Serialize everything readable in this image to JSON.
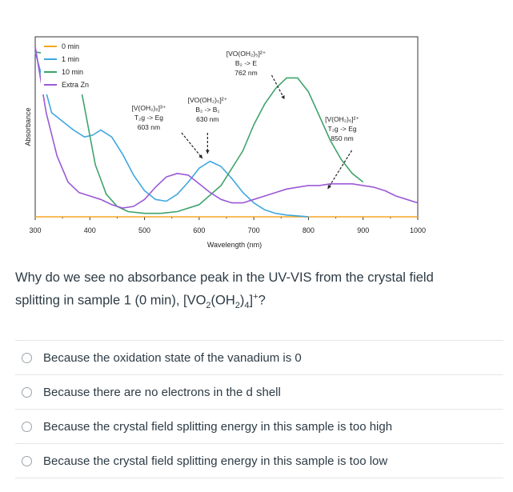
{
  "chart_data": {
    "type": "line",
    "xlabel": "Wavelength (nm)",
    "ylabel": "Absorbance",
    "xlim": [
      300,
      1000
    ],
    "ylim": [
      0,
      1
    ],
    "x_ticks": [
      "300",
      "400",
      "500",
      "600",
      "700",
      "800",
      "900",
      "1000"
    ],
    "legend_position": "top-left",
    "series": [
      {
        "name": "0 min",
        "color": "#f5a623",
        "x": [
          300,
          1000
        ],
        "y": [
          0.0,
          0.0
        ]
      },
      {
        "name": "1 min",
        "color": "#3fa7e0",
        "x": [
          300,
          330,
          350,
          370,
          390,
          405,
          420,
          440,
          460,
          480,
          500,
          520,
          540,
          560,
          580,
          600,
          620,
          640,
          660,
          680,
          700,
          720,
          740,
          760,
          800
        ],
        "y": [
          0.95,
          0.6,
          0.55,
          0.5,
          0.46,
          0.47,
          0.5,
          0.46,
          0.36,
          0.24,
          0.15,
          0.1,
          0.09,
          0.13,
          0.2,
          0.28,
          0.32,
          0.29,
          0.22,
          0.14,
          0.08,
          0.04,
          0.02,
          0.01,
          0.0
        ]
      },
      {
        "name": "10 min",
        "color": "#3fa36a",
        "x": [
          300,
          340,
          360,
          380,
          395,
          410,
          430,
          450,
          470,
          500,
          530,
          560,
          600,
          640,
          680,
          700,
          720,
          740,
          760,
          780,
          800,
          820,
          840,
          860,
          880,
          900
        ],
        "y": [
          0.95,
          0.93,
          0.9,
          0.8,
          0.55,
          0.3,
          0.13,
          0.06,
          0.03,
          0.02,
          0.02,
          0.03,
          0.07,
          0.18,
          0.38,
          0.53,
          0.65,
          0.74,
          0.8,
          0.8,
          0.72,
          0.58,
          0.44,
          0.33,
          0.25,
          0.2
        ]
      },
      {
        "name": "Extra Zn",
        "color": "#9b59d6",
        "x": [
          300,
          320,
          340,
          360,
          380,
          400,
          420,
          440,
          460,
          480,
          500,
          520,
          540,
          560,
          580,
          600,
          620,
          640,
          660,
          680,
          700,
          720,
          740,
          760,
          780,
          800,
          820,
          840,
          860,
          880,
          900,
          920,
          940,
          960,
          980,
          1000
        ],
        "y": [
          0.98,
          0.6,
          0.35,
          0.2,
          0.14,
          0.12,
          0.1,
          0.07,
          0.05,
          0.06,
          0.1,
          0.17,
          0.23,
          0.25,
          0.24,
          0.19,
          0.14,
          0.1,
          0.08,
          0.08,
          0.1,
          0.12,
          0.14,
          0.16,
          0.17,
          0.18,
          0.18,
          0.19,
          0.19,
          0.19,
          0.18,
          0.17,
          0.15,
          0.12,
          0.1,
          0.08
        ]
      }
    ],
    "annotations": [
      {
        "lines": [
          "[VO(OH₂)₅]²⁺",
          "B₂ -> E",
          "762 nm"
        ],
        "x": 762
      },
      {
        "lines": [
          "[VO(OH₂)₅]²⁺",
          "B₂ -> B₁",
          "630 nm"
        ],
        "x": 630
      },
      {
        "lines": [
          "[V(OH₂)₆]³⁺",
          "T₂g -> Eg",
          "603 nm"
        ],
        "x": 603
      },
      {
        "lines": [
          "[V(OH₂)₆]²⁺",
          "T₂g -> Eg",
          "850 nm"
        ],
        "x": 850
      }
    ]
  },
  "question": {
    "text_line1": "Why do we see no absorbance peak in the UV-VIS from the crystal field",
    "text_line2_prefix": "splitting in sample 1 (0 min), [VO",
    "sub1": "2",
    "mid1": "(OH",
    "sub2": "2",
    "mid2": ")",
    "sub3": "4",
    "mid3": "]",
    "sup1": "+",
    "suffix": "?"
  },
  "options": [
    {
      "label": "Because the oxidation state of the vanadium is 0"
    },
    {
      "label": "Because there are no electrons in the d shell"
    },
    {
      "label": "Because the crystal field splitting energy in this sample is too high"
    },
    {
      "label": "Because the crystal field splitting energy in this sample is too low"
    }
  ]
}
